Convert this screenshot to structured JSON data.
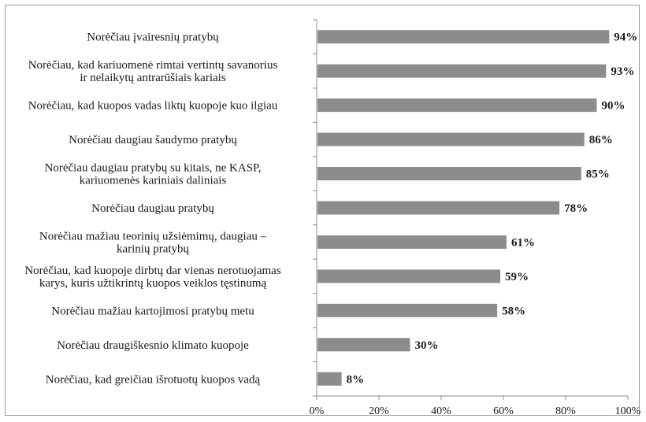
{
  "chart_data": {
    "type": "bar",
    "orientation": "horizontal",
    "categories": [
      [
        "Norėčiau įvairesnių pratybų"
      ],
      [
        "Norėčiau, kad kariuomenė rimtai vertintų savanorius",
        "ir nelaikytų antrarūšiais kariais"
      ],
      [
        "Norėčiau, kad kuopos vadas liktų kuopoje kuo ilgiau"
      ],
      [
        "Norėčiau daugiau šaudymo pratybų"
      ],
      [
        "Norėčiau daugiau pratybų su kitais, ne KASP,",
        "kariuomenės kariniais daliniais"
      ],
      [
        "Norėčiau daugiau pratybų"
      ],
      [
        "Norėčiau mažiau teorinių užsiėmimų, daugiau –",
        "karinių pratybų"
      ],
      [
        "Norėčiau, kad kuopoje dirbtų dar vienas nerotuojamas",
        "karys, kuris užtikrintų kuopos veiklos tęstinumą"
      ],
      [
        "Norėčiau mažiau kartojimosi pratybų metu"
      ],
      [
        "Norėčiau draugiškesnio klimato kuopoje"
      ],
      [
        "Norėčiau, kad greičiau išrotuotų kuopos vadą"
      ]
    ],
    "values": [
      94,
      93,
      90,
      86,
      85,
      78,
      61,
      59,
      58,
      30,
      8
    ],
    "value_labels": [
      "94%",
      "93%",
      "90%",
      "86%",
      "85%",
      "78%",
      "61%",
      "59%",
      "58%",
      "30%",
      "8%"
    ],
    "x_ticks": [
      0,
      20,
      40,
      60,
      80,
      100
    ],
    "x_tick_labels": [
      "0%",
      "20%",
      "40%",
      "60%",
      "80%",
      "100%"
    ],
    "xlim": [
      0,
      100
    ],
    "grid": false,
    "legend": false,
    "bar_color": "#8c8c8c"
  }
}
